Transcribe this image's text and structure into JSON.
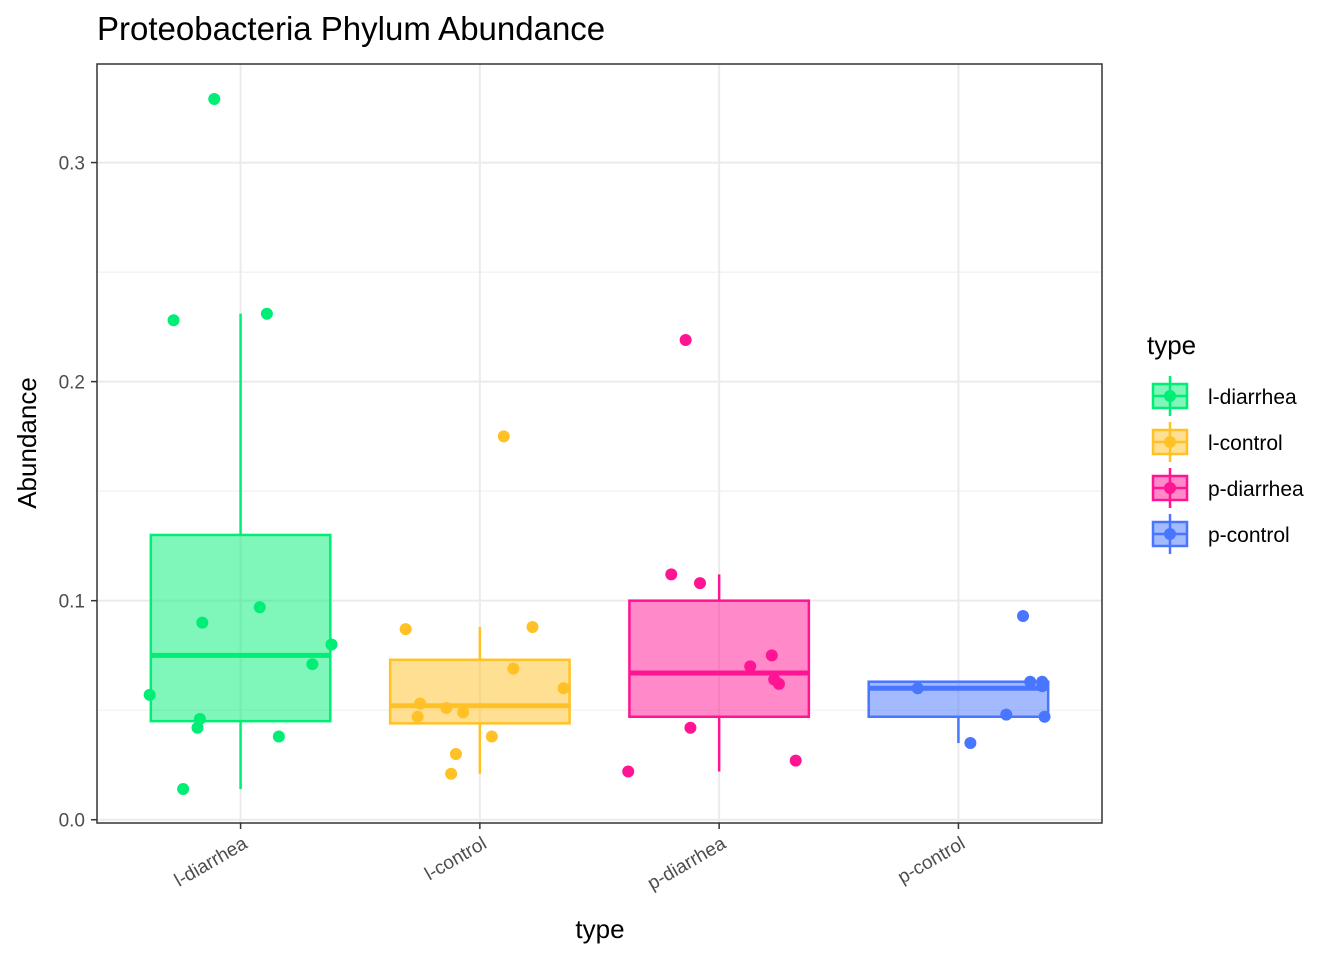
{
  "chart_data": {
    "type": "box",
    "title": "Proteobacteria Phylum Abundance",
    "xlabel": "type",
    "ylabel": "Abundance",
    "ylim": [
      -0.0015,
      0.345
    ],
    "yticks": [
      0.0,
      0.1,
      0.2,
      0.3
    ],
    "ytick_labels": [
      "0.0",
      "0.1",
      "0.2",
      "0.3"
    ],
    "grid": true,
    "legend": {
      "title": "type",
      "position": "right"
    },
    "categories": [
      "l-diarrhea",
      "l-control",
      "p-diarrhea",
      "p-control"
    ],
    "series": [
      {
        "name": "l-diarrhea",
        "color": "#00ee76",
        "box": {
          "whisker_low": 0.014,
          "q1": 0.045,
          "median": 0.075,
          "q3": 0.13,
          "whisker_high": 0.231
        },
        "points": [
          {
            "j": -0.11,
            "y": 0.329
          },
          {
            "j": -0.28,
            "y": 0.228
          },
          {
            "j": 0.11,
            "y": 0.231
          },
          {
            "j": 0.08,
            "y": 0.097
          },
          {
            "j": -0.16,
            "y": 0.09
          },
          {
            "j": 0.38,
            "y": 0.08
          },
          {
            "j": 0.3,
            "y": 0.071
          },
          {
            "j": -0.38,
            "y": 0.057
          },
          {
            "j": -0.17,
            "y": 0.046
          },
          {
            "j": -0.18,
            "y": 0.042
          },
          {
            "j": 0.16,
            "y": 0.038
          },
          {
            "j": -0.24,
            "y": 0.014
          }
        ]
      },
      {
        "name": "l-control",
        "color": "#ffc125",
        "box": {
          "whisker_low": 0.021,
          "q1": 0.044,
          "median": 0.052,
          "q3": 0.073,
          "whisker_high": 0.088
        },
        "points": [
          {
            "j": 0.1,
            "y": 0.175
          },
          {
            "j": -0.31,
            "y": 0.087
          },
          {
            "j": 0.22,
            "y": 0.088
          },
          {
            "j": 0.14,
            "y": 0.069
          },
          {
            "j": 0.35,
            "y": 0.06
          },
          {
            "j": -0.25,
            "y": 0.053
          },
          {
            "j": -0.14,
            "y": 0.051
          },
          {
            "j": -0.07,
            "y": 0.049
          },
          {
            "j": -0.26,
            "y": 0.047
          },
          {
            "j": 0.05,
            "y": 0.038
          },
          {
            "j": -0.1,
            "y": 0.03
          },
          {
            "j": -0.12,
            "y": 0.021
          }
        ]
      },
      {
        "name": "p-diarrhea",
        "color": "#ff1493",
        "box": {
          "whisker_low": 0.022,
          "q1": 0.047,
          "median": 0.067,
          "q3": 0.1,
          "whisker_high": 0.112
        },
        "points": [
          {
            "j": -0.14,
            "y": 0.219
          },
          {
            "j": -0.2,
            "y": 0.112
          },
          {
            "j": -0.08,
            "y": 0.108
          },
          {
            "j": 0.22,
            "y": 0.075
          },
          {
            "j": 0.13,
            "y": 0.07
          },
          {
            "j": 0.23,
            "y": 0.064
          },
          {
            "j": 0.25,
            "y": 0.062
          },
          {
            "j": -0.12,
            "y": 0.042
          },
          {
            "j": 0.32,
            "y": 0.027
          },
          {
            "j": -0.38,
            "y": 0.022
          }
        ]
      },
      {
        "name": "p-control",
        "color": "#4876ff",
        "box": {
          "whisker_low": 0.035,
          "q1": 0.047,
          "median": 0.06,
          "q3": 0.063,
          "whisker_high": 0.063
        },
        "points": [
          {
            "j": 0.27,
            "y": 0.093
          },
          {
            "j": 0.3,
            "y": 0.063
          },
          {
            "j": 0.35,
            "y": 0.063
          },
          {
            "j": 0.35,
            "y": 0.061
          },
          {
            "j": -0.17,
            "y": 0.06
          },
          {
            "j": 0.2,
            "y": 0.048
          },
          {
            "j": 0.36,
            "y": 0.047
          },
          {
            "j": 0.05,
            "y": 0.035
          }
        ]
      }
    ]
  }
}
